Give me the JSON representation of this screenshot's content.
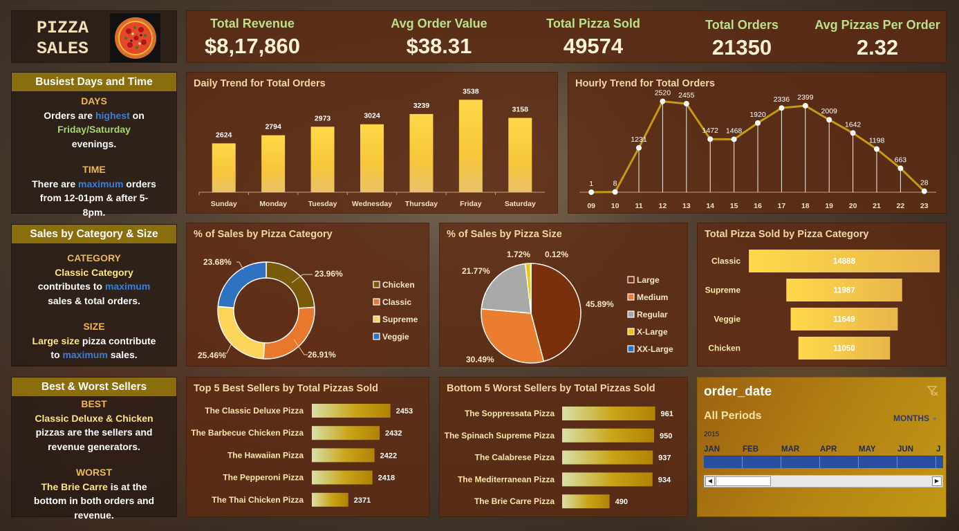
{
  "header": {
    "title_line1": "PIZZA",
    "title_line2": "SALES",
    "logo_icon": "pizza-icon"
  },
  "kpis": [
    {
      "label": "Total Revenue",
      "value": "$8,17,860"
    },
    {
      "label": "Avg Order Value",
      "value": "$38.31"
    },
    {
      "label": "Total Pizza Sold",
      "value": "49574"
    },
    {
      "label": "Total Orders",
      "value": "21350"
    },
    {
      "label": "Avg Pizzas Per Order",
      "value": "2.32"
    }
  ],
  "insights": {
    "busiest": {
      "title": "Busiest Days and Time",
      "days_label": "DAYS",
      "days_l1a": "Orders are ",
      "days_l1b": "highest",
      "days_l1c": " on",
      "days_l2": "Friday/Saturday",
      "days_l3": "evenings.",
      "time_label": "TIME",
      "time_l1a": "There are ",
      "time_l1b": "maximum",
      "time_l1c": " orders",
      "time_l2": "from 12-01pm & after 5-",
      "time_l3": "8pm."
    },
    "category": {
      "title": "Sales by Category & Size",
      "cat_label": "CATEGORY",
      "cat_l1": "Classic Category",
      "cat_l2a": "contributes to ",
      "cat_l2b": "maximum",
      "cat_l3": "sales & total orders.",
      "size_label": "SIZE",
      "size_l1a": "Large size",
      "size_l1b": " pizza contribute",
      "size_l2a": "to ",
      "size_l2b": "maximum",
      "size_l2c": " sales."
    },
    "sellers": {
      "title": "Best & Worst Sellers",
      "best_label": "BEST",
      "best_l1": "Classic Deluxe & Chicken",
      "best_l2": "pizzas are the sellers and",
      "best_l3": "revenue generators.",
      "worst_label": "WORST",
      "worst_l1a": "The Brie Carre",
      "worst_l1b": " is at the",
      "worst_l2": "bottom in both orders and",
      "worst_l3": "revenue."
    }
  },
  "chart_data": [
    {
      "id": "daily",
      "type": "bar",
      "title": "Daily Trend for Total Orders",
      "categories": [
        "Sunday",
        "Monday",
        "Tuesday",
        "Wednesday",
        "Thursday",
        "Friday",
        "Saturday"
      ],
      "values": [
        2624,
        2794,
        2973,
        3024,
        3239,
        3538,
        3158
      ],
      "ylim": [
        1600,
        3600
      ]
    },
    {
      "id": "hourly",
      "type": "line",
      "title": "Hourly Trend for Total Orders",
      "x": [
        "09",
        "10",
        "11",
        "12",
        "13",
        "14",
        "15",
        "16",
        "17",
        "18",
        "19",
        "20",
        "21",
        "22",
        "23"
      ],
      "values": [
        1,
        8,
        1231,
        2520,
        2455,
        1472,
        1468,
        1920,
        2336,
        2399,
        2009,
        1642,
        1198,
        663,
        28
      ],
      "ylim": [
        0,
        2800
      ]
    },
    {
      "id": "category_pct",
      "type": "pie",
      "title": "% of Sales by Pizza Category",
      "labels": [
        "Chicken",
        "Classic",
        "Supreme",
        "Veggie"
      ],
      "values": [
        23.96,
        26.91,
        25.46,
        23.68
      ],
      "value_labels": [
        "23.96%",
        "26.91%",
        "25.46%",
        "23.68%"
      ],
      "colors": [
        "#7a5a0a",
        "#e8782e",
        "#fcd45a",
        "#2f72c0"
      ],
      "legend": "right"
    },
    {
      "id": "size_pct",
      "type": "pie",
      "title": "% of Sales by Pizza Size",
      "labels": [
        "Large",
        "Medium",
        "Regular",
        "X-Large",
        "XX-Large"
      ],
      "values": [
        45.89,
        30.49,
        21.77,
        1.72,
        0.12
      ],
      "value_labels": [
        "45.89%",
        "30.49%",
        "21.77%",
        "1.72%",
        "0.12%"
      ],
      "colors": [
        "#7a300c",
        "#ea7d30",
        "#a8a8a8",
        "#f2c20e",
        "#3070c0"
      ],
      "legend": "right"
    },
    {
      "id": "category_sold",
      "type": "bar",
      "title": "Total Pizza Sold by Pizza Category",
      "categories": [
        "Classic",
        "Supreme",
        "Veggie",
        "Chicken"
      ],
      "values": [
        14888,
        11987,
        11649,
        11050
      ],
      "xlim": [
        7500,
        15000
      ]
    },
    {
      "id": "best5",
      "type": "bar",
      "title": "Top 5 Best Sellers by Total Pizzas Sold",
      "categories": [
        "The Classic Deluxe Pizza",
        "The Barbecue Chicken Pizza",
        "The Hawaiian Pizza",
        "The Pepperoni Pizza",
        "The Thai Chicken Pizza"
      ],
      "values": [
        2453,
        2432,
        2422,
        2418,
        2371
      ],
      "xlim": [
        2300,
        2475
      ]
    },
    {
      "id": "worst5",
      "type": "bar",
      "title": "Bottom 5 Worst Sellers by Total Pizzas Sold",
      "categories": [
        "The Soppressata Pizza",
        "The Spinach Supreme Pizza",
        "The Calabrese Pizza",
        "The Mediterranean Pizza",
        "The Brie Carre Pizza"
      ],
      "values": [
        961,
        950,
        937,
        934,
        490
      ],
      "xlim": [
        0,
        1000
      ]
    }
  ],
  "slicer": {
    "title": "order_date",
    "period": "All Periods",
    "granularity": "MONTHS",
    "year": "2015",
    "months": [
      "JAN",
      "FEB",
      "MAR",
      "APR",
      "MAY",
      "JUN",
      "J"
    ],
    "filter_icon": "clear-filter-icon",
    "left_arrow_icon": "scroll-left-icon",
    "right_arrow_icon": "scroll-right-icon"
  }
}
